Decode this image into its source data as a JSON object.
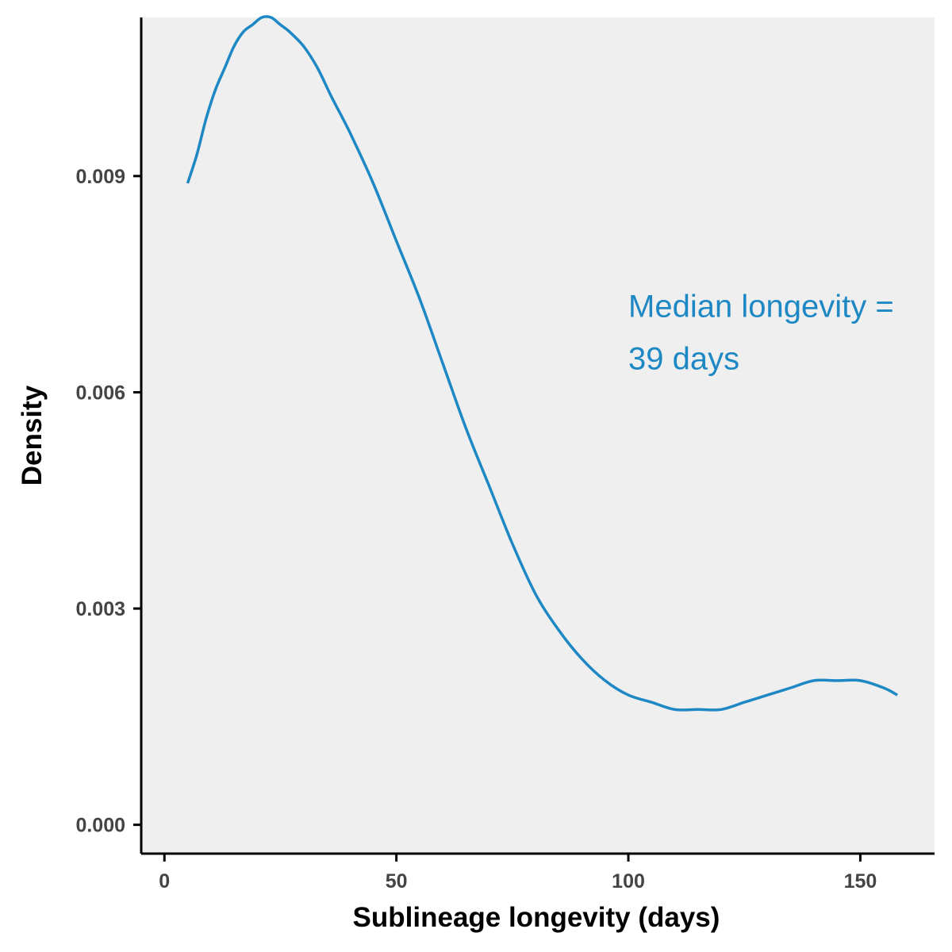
{
  "chart_data": {
    "type": "line",
    "title": "",
    "xlabel": "Sublineage longevity (days)",
    "ylabel": "Density",
    "xlim": [
      -5,
      166
    ],
    "ylim": [
      -0.0004,
      0.0112
    ],
    "x_ticks": [
      0,
      50,
      100,
      150
    ],
    "x_tick_labels": [
      "0",
      "50",
      "100",
      "150"
    ],
    "y_ticks": [
      0.0,
      0.003,
      0.006,
      0.009
    ],
    "y_tick_labels": [
      "0.000",
      "0.003",
      "0.006",
      "0.009"
    ],
    "grid": false,
    "legend": "none",
    "colors": {
      "line": "#1e88c4",
      "panel_background": "#efefef",
      "axis": "#000000"
    },
    "series": [
      {
        "x": [
          5,
          7,
          9,
          11,
          13,
          15,
          17,
          19,
          21,
          23,
          25,
          27,
          30,
          33,
          36,
          40,
          45,
          50,
          55,
          60,
          65,
          70,
          75,
          80,
          85,
          90,
          95,
          100,
          105,
          110,
          115,
          120,
          125,
          130,
          135,
          140,
          145,
          150,
          155,
          158
        ],
        "y": [
          0.0089,
          0.0093,
          0.0098,
          0.0102,
          0.0105,
          0.0108,
          0.011,
          0.0111,
          0.0112,
          0.0112,
          0.0111,
          0.011,
          0.0108,
          0.0105,
          0.0101,
          0.0096,
          0.0089,
          0.0081,
          0.0073,
          0.0064,
          0.0055,
          0.0047,
          0.0039,
          0.0032,
          0.0027,
          0.0023,
          0.002,
          0.0018,
          0.0017,
          0.0016,
          0.0016,
          0.0016,
          0.0017,
          0.0018,
          0.0019,
          0.002,
          0.002,
          0.002,
          0.0019,
          0.0018
        ]
      }
    ],
    "annotations": [
      {
        "lines": [
          "Median longevity =",
          "39 days"
        ],
        "x": 100,
        "y": 0.0072
      }
    ]
  }
}
